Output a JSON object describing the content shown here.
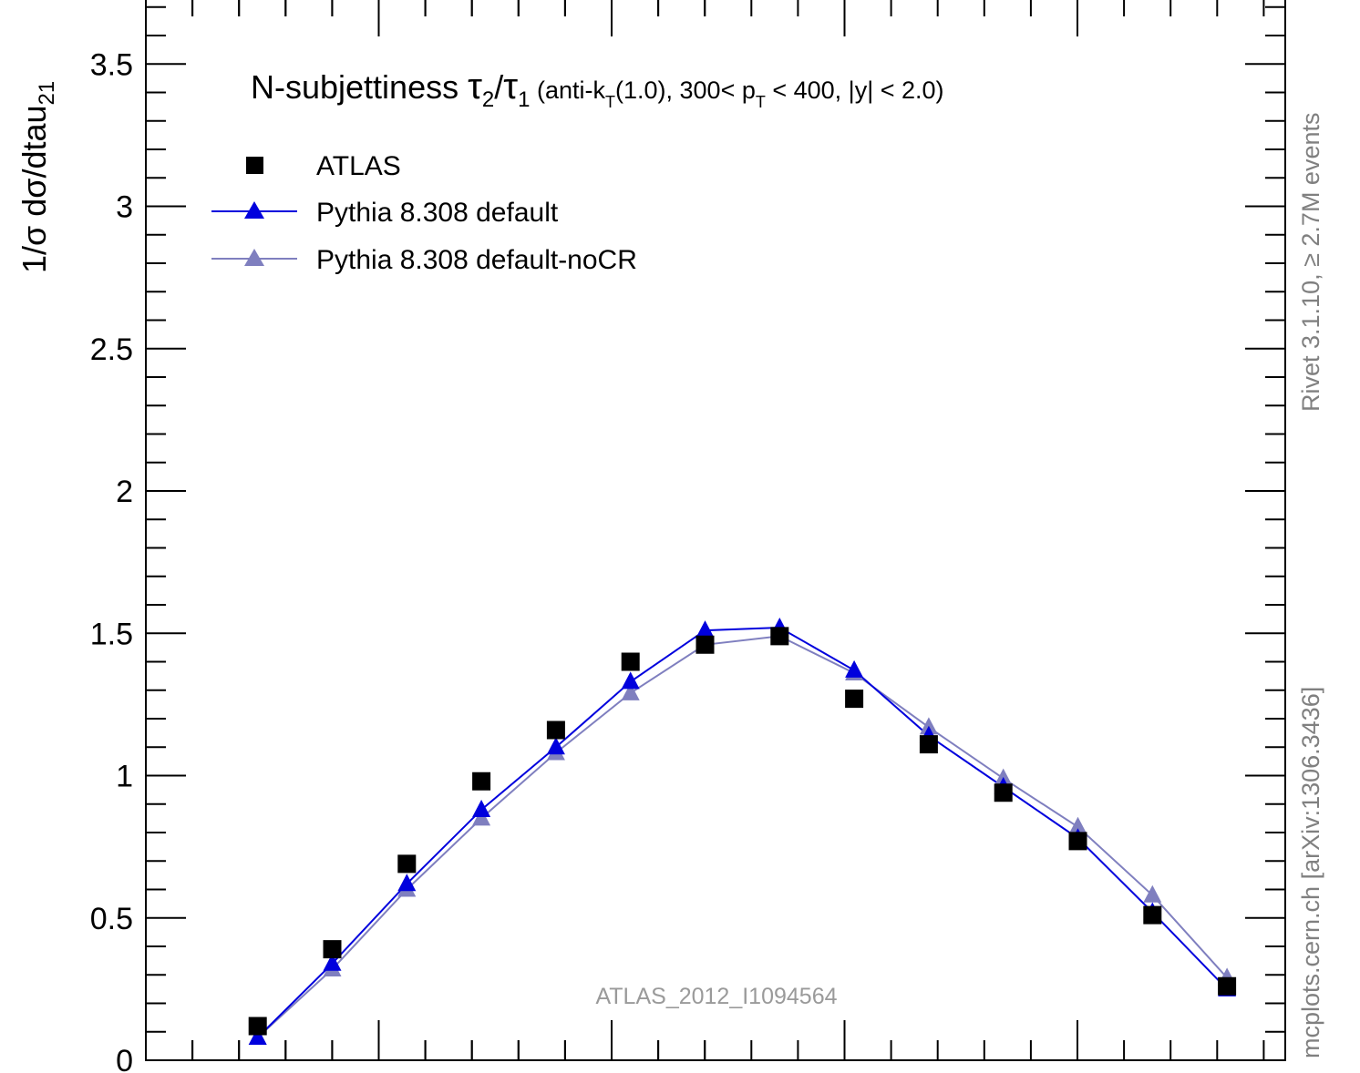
{
  "chart_data": {
    "type": "scatter",
    "title_main": "N-subjettiness ",
    "title_tau": "τ",
    "title_sub2": "2",
    "title_slash": "/",
    "title_sub1": "1",
    "title_cond1": " (anti-k",
    "title_condT": "T",
    "title_cond2": "(1.0), 300< p",
    "title_condT2": "T",
    "title_cond3": " < 400, |y| < 2.0)",
    "ylabel_main": "1/σ dσ/dtau",
    "ylabel_sub": "21",
    "ylim": [
      0,
      3.7
    ],
    "xlim": [
      0,
      1
    ],
    "yticks": [
      {
        "value": 0,
        "label": "0"
      },
      {
        "value": 0.5,
        "label": "0.5"
      },
      {
        "value": 1,
        "label": "1"
      },
      {
        "value": 1.5,
        "label": "1.5"
      },
      {
        "value": 2,
        "label": "2"
      },
      {
        "value": 2.5,
        "label": "2.5"
      },
      {
        "value": 3,
        "label": "3"
      },
      {
        "value": 3.5,
        "label": "3.5"
      }
    ],
    "series": [
      {
        "name": "ATLAS",
        "marker": "square",
        "color": "#000000",
        "line": false,
        "x": [
          0.06,
          0.1,
          0.14,
          0.18,
          0.22,
          0.26,
          0.3,
          0.34,
          0.38,
          0.42,
          0.46,
          0.5,
          0.54,
          0.58
        ],
        "y": [
          0.12,
          0.39,
          0.69,
          0.98,
          1.16,
          1.4,
          1.46,
          1.49,
          1.27,
          1.11,
          0.94,
          0.77,
          0.51,
          0.26
        ]
      },
      {
        "name": "Pythia 8.308 default",
        "marker": "triangle",
        "color": "#0000dd",
        "line": true,
        "x": [
          0.06,
          0.1,
          0.14,
          0.18,
          0.22,
          0.26,
          0.3,
          0.34,
          0.38,
          0.42,
          0.46,
          0.5,
          0.54,
          0.58
        ],
        "y": [
          0.08,
          0.34,
          0.62,
          0.88,
          1.1,
          1.33,
          1.51,
          1.52,
          1.37,
          1.14,
          0.96,
          0.78,
          0.52,
          0.25
        ]
      },
      {
        "name": "Pythia 8.308 default-noCR",
        "marker": "triangle",
        "color": "#7f7fbf",
        "line": true,
        "x": [
          0.06,
          0.1,
          0.14,
          0.18,
          0.22,
          0.26,
          0.3,
          0.34,
          0.38,
          0.42,
          0.46,
          0.5,
          0.54,
          0.58
        ],
        "y": [
          0.08,
          0.32,
          0.6,
          0.85,
          1.08,
          1.29,
          1.46,
          1.49,
          1.36,
          1.17,
          0.99,
          0.82,
          0.58,
          0.29
        ]
      }
    ],
    "legend_position": "top-left",
    "analysis_label": "ATLAS_2012_I1094564",
    "side_label_top": "Rivet 3.1.10, ≥ 2.7M events",
    "side_label_bottom": "mcplots.cern.ch [arXiv:1306.3436]"
  }
}
